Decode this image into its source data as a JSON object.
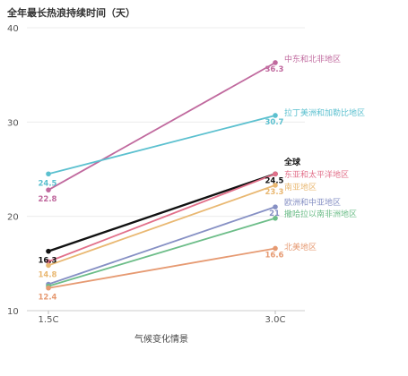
{
  "chart_data": {
    "type": "line",
    "title": "全年最长热浪持续时间（天）",
    "xlabel": "气候变化情景",
    "ylabel": "",
    "categories": [
      "1.5C",
      "3.0C"
    ],
    "ylim": [
      10,
      40
    ],
    "yticks": [
      10,
      20,
      30,
      40
    ],
    "grid": true,
    "series": [
      {
        "name": "中东和北非地区",
        "values": [
          22.8,
          36.3
        ],
        "labels": [
          "22.8",
          "36.3"
        ],
        "color": "#c0699e",
        "bold": false
      },
      {
        "name": "拉丁美洲和加勒比地区",
        "values": [
          24.5,
          30.7
        ],
        "labels": [
          "24.5",
          "30.7"
        ],
        "color": "#5bc0cf",
        "bold": false
      },
      {
        "name": "全球",
        "values": [
          16.3,
          24.5
        ],
        "labels": [
          "16.3",
          "24.5"
        ],
        "color": "#111111",
        "bold": true
      },
      {
        "name": "东亚和太平洋地区",
        "values": [
          15.2,
          24.5
        ],
        "labels": [
          "",
          ""
        ],
        "color": "#e2708a",
        "bold": false
      },
      {
        "name": "南亚地区",
        "values": [
          14.8,
          23.3
        ],
        "labels": [
          "14.8",
          "23.3"
        ],
        "color": "#e9b872",
        "bold": false
      },
      {
        "name": "欧洲和中亚地区",
        "values": [
          12.8,
          21.0
        ],
        "labels": [
          "",
          "21"
        ],
        "color": "#8690c4",
        "bold": false
      },
      {
        "name": "撒哈拉以南非洲地区",
        "values": [
          12.6,
          19.8
        ],
        "labels": [
          "",
          ""
        ],
        "color": "#6cbd88",
        "bold": false
      },
      {
        "name": "北美地区",
        "values": [
          12.4,
          16.6
        ],
        "labels": [
          "12.4",
          "16.6"
        ],
        "color": "#e69a72",
        "bold": false
      }
    ]
  }
}
